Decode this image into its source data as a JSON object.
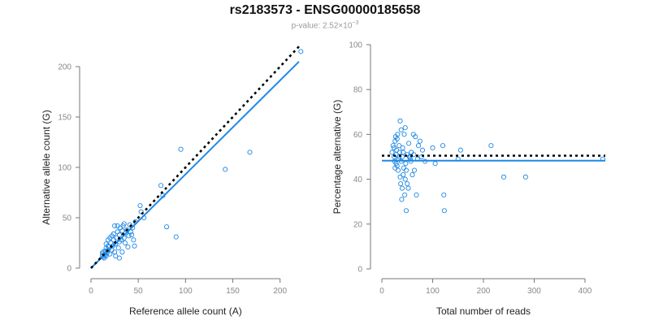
{
  "header": {
    "title": "rs2183573 - ENSG00000185658",
    "pvalue_prefix": "p-value: 2.52×10",
    "pvalue_exp": "−3"
  },
  "colors": {
    "points": "#1e88e5",
    "fit": "#1e88e5",
    "reference": "#000000"
  },
  "chart_data": [
    {
      "type": "scatter",
      "xlabel": "Reference allele count (A)",
      "ylabel": "Alternative allele count (G)",
      "xlim": [
        0,
        220
      ],
      "ylim": [
        0,
        200
      ],
      "xticks": [
        0,
        50,
        100,
        150,
        200
      ],
      "yticks": [
        0,
        50,
        100,
        150,
        200
      ],
      "fit_line": {
        "x": [
          0,
          220
        ],
        "y": [
          0,
          205
        ]
      },
      "reference_line": {
        "x": [
          0,
          220
        ],
        "y": [
          0,
          220
        ]
      },
      "points": [
        [
          12,
          12
        ],
        [
          13,
          11
        ],
        [
          14,
          14
        ],
        [
          15,
          13
        ],
        [
          16,
          12
        ],
        [
          12,
          15
        ],
        [
          13,
          16
        ],
        [
          15,
          17
        ],
        [
          17,
          15
        ],
        [
          18,
          18
        ],
        [
          14,
          10
        ],
        [
          16,
          20
        ],
        [
          19,
          21
        ],
        [
          20,
          14
        ],
        [
          22,
          18
        ],
        [
          21,
          25
        ],
        [
          23,
          22
        ],
        [
          24,
          28
        ],
        [
          18,
          28
        ],
        [
          16,
          24
        ],
        [
          25,
          16
        ],
        [
          26,
          24
        ],
        [
          27,
          30
        ],
        [
          28,
          36
        ],
        [
          29,
          20
        ],
        [
          30,
          26
        ],
        [
          30,
          33
        ],
        [
          31,
          40
        ],
        [
          32,
          28
        ],
        [
          33,
          37
        ],
        [
          34,
          42
        ],
        [
          35,
          30
        ],
        [
          36,
          25
        ],
        [
          35,
          44
        ],
        [
          37,
          35
        ],
        [
          38,
          38
        ],
        [
          40,
          32
        ],
        [
          41,
          43
        ],
        [
          39,
          21
        ],
        [
          43,
          33
        ],
        [
          45,
          28
        ],
        [
          44,
          40
        ],
        [
          46,
          22
        ],
        [
          47,
          46
        ],
        [
          42,
          36
        ],
        [
          25,
          42
        ],
        [
          28,
          42
        ],
        [
          30,
          10
        ],
        [
          33,
          16
        ],
        [
          26,
          12
        ],
        [
          52,
          62
        ],
        [
          56,
          50
        ],
        [
          53,
          56
        ],
        [
          74,
          82
        ],
        [
          76,
          72
        ],
        [
          80,
          41
        ],
        [
          90,
          31
        ],
        [
          95,
          118
        ],
        [
          142,
          98
        ],
        [
          168,
          115
        ],
        [
          222,
          215
        ],
        [
          20,
          30
        ],
        [
          22,
          32
        ],
        [
          18,
          22
        ],
        [
          24,
          34
        ]
      ]
    },
    {
      "type": "scatter",
      "xlabel": "Total number of reads",
      "ylabel": "Percentage alternative (G)",
      "xlim": [
        0,
        440
      ],
      "ylim": [
        0,
        100
      ],
      "xticks": [
        0,
        100,
        200,
        300,
        400
      ],
      "yticks": [
        0,
        20,
        40,
        60,
        80,
        100
      ],
      "fit_line": {
        "x": [
          0,
          440
        ],
        "y": [
          48.3,
          48.3
        ]
      },
      "reference_line": {
        "x": [
          0,
          440
        ],
        "y": [
          50.5,
          50.5
        ]
      },
      "points": [
        [
          20,
          52
        ],
        [
          22,
          55
        ],
        [
          24,
          50
        ],
        [
          25,
          48
        ],
        [
          26,
          57
        ],
        [
          27,
          59
        ],
        [
          28,
          51
        ],
        [
          29,
          53
        ],
        [
          30,
          46
        ],
        [
          31,
          60
        ],
        [
          32,
          44
        ],
        [
          33,
          49
        ],
        [
          34,
          55
        ],
        [
          35,
          52
        ],
        [
          36,
          66
        ],
        [
          36,
          41
        ],
        [
          37,
          38
        ],
        [
          38,
          48
        ],
        [
          39,
          31
        ],
        [
          40,
          50
        ],
        [
          41,
          54
        ],
        [
          42,
          42
        ],
        [
          43,
          45
        ],
        [
          44,
          60
        ],
        [
          45,
          33
        ],
        [
          46,
          63
        ],
        [
          47,
          47
        ],
        [
          48,
          26
        ],
        [
          50,
          38
        ],
        [
          52,
          36
        ],
        [
          53,
          56
        ],
        [
          55,
          50
        ],
        [
          56,
          49
        ],
        [
          58,
          52
        ],
        [
          60,
          42
        ],
        [
          62,
          60
        ],
        [
          64,
          44
        ],
        [
          66,
          59
        ],
        [
          68,
          33
        ],
        [
          70,
          49
        ],
        [
          72,
          55
        ],
        [
          75,
          57
        ],
        [
          78,
          50
        ],
        [
          80,
          53
        ],
        [
          85,
          48
        ],
        [
          100,
          54
        ],
        [
          105,
          47
        ],
        [
          120,
          55
        ],
        [
          122,
          33
        ],
        [
          123,
          26
        ],
        [
          150,
          49
        ],
        [
          155,
          53
        ],
        [
          215,
          55
        ],
        [
          240,
          41
        ],
        [
          283,
          41
        ],
        [
          435,
          49
        ],
        [
          24,
          54
        ],
        [
          28,
          47
        ],
        [
          30,
          58
        ],
        [
          34,
          50
        ],
        [
          38,
          62
        ],
        [
          40,
          36
        ],
        [
          42,
          52
        ],
        [
          46,
          40
        ],
        [
          48,
          44
        ],
        [
          50,
          51
        ],
        [
          54,
          50
        ],
        [
          57,
          48
        ],
        [
          63,
          51
        ],
        [
          26,
          45
        ]
      ]
    }
  ]
}
